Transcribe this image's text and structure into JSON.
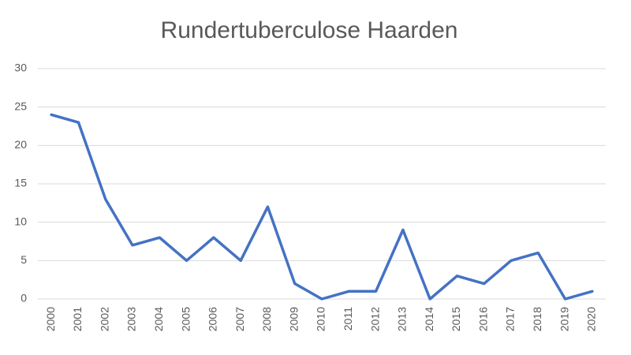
{
  "chart_data": {
    "type": "line",
    "title": "Rundertuberculose Haarden",
    "categories": [
      "2000",
      "2001",
      "2002",
      "2003",
      "2004",
      "2005",
      "2006",
      "2007",
      "2008",
      "2009",
      "2010",
      "2011",
      "2012",
      "2013",
      "2014",
      "2015",
      "2016",
      "2017",
      "2018",
      "2019",
      "2020"
    ],
    "series": [
      {
        "color": "#4472c4",
        "values": [
          24,
          23,
          13,
          7,
          8,
          5,
          8,
          5,
          12,
          2,
          0,
          1,
          1,
          9,
          0,
          3,
          2,
          5,
          6,
          0,
          1
        ]
      }
    ],
    "ylim": [
      0,
      30
    ],
    "yticks": [
      0,
      5,
      10,
      15,
      20,
      25,
      30
    ],
    "grid": true
  }
}
